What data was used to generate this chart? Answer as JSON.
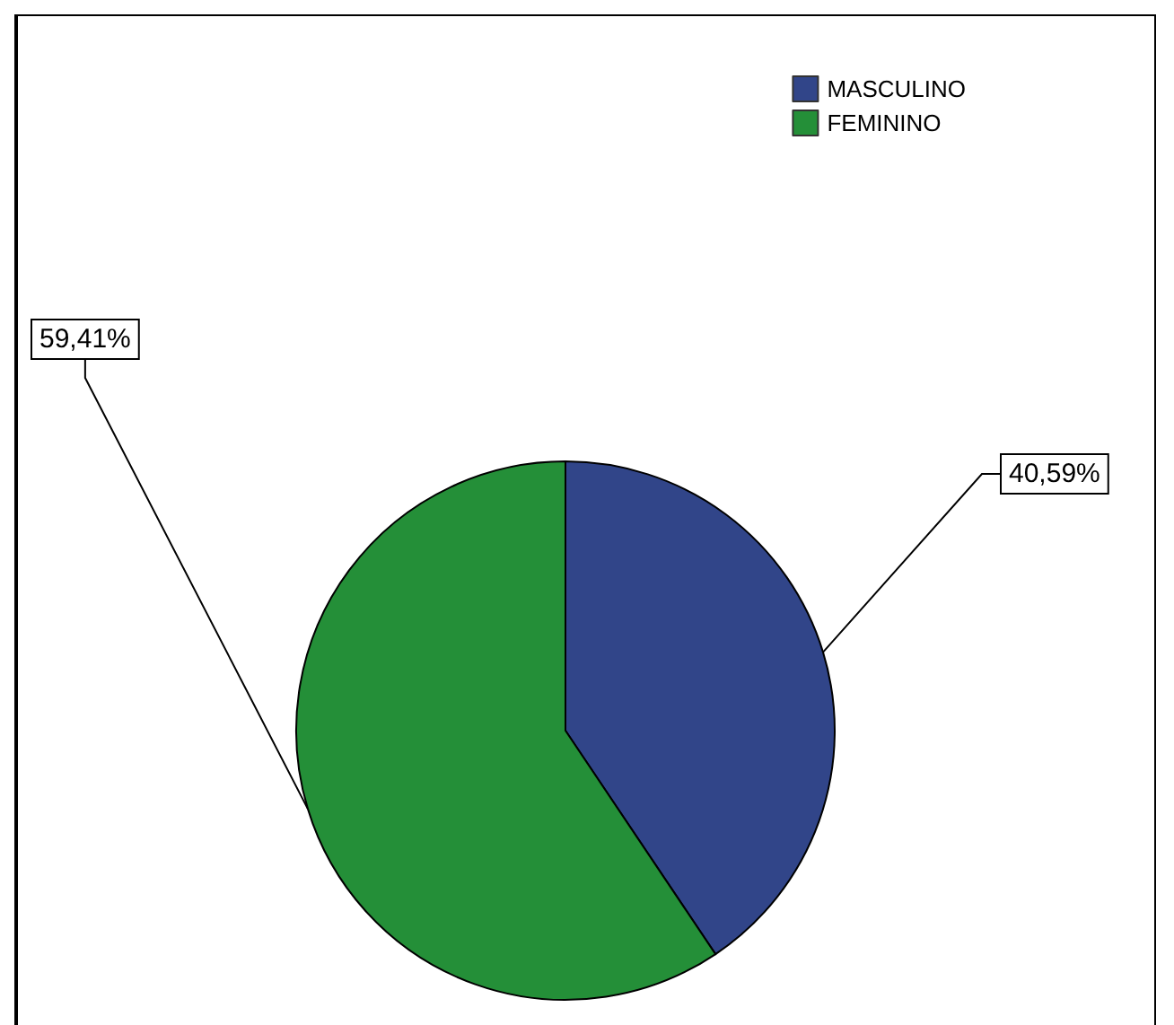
{
  "chart_data": {
    "type": "pie",
    "categories": [
      "MASCULINO",
      "FEMININO"
    ],
    "values": [
      40.59,
      59.41
    ],
    "colors": [
      "#314589",
      "#248f38"
    ],
    "value_labels": [
      "40,59%",
      "59,41%"
    ],
    "legend": "top right"
  }
}
